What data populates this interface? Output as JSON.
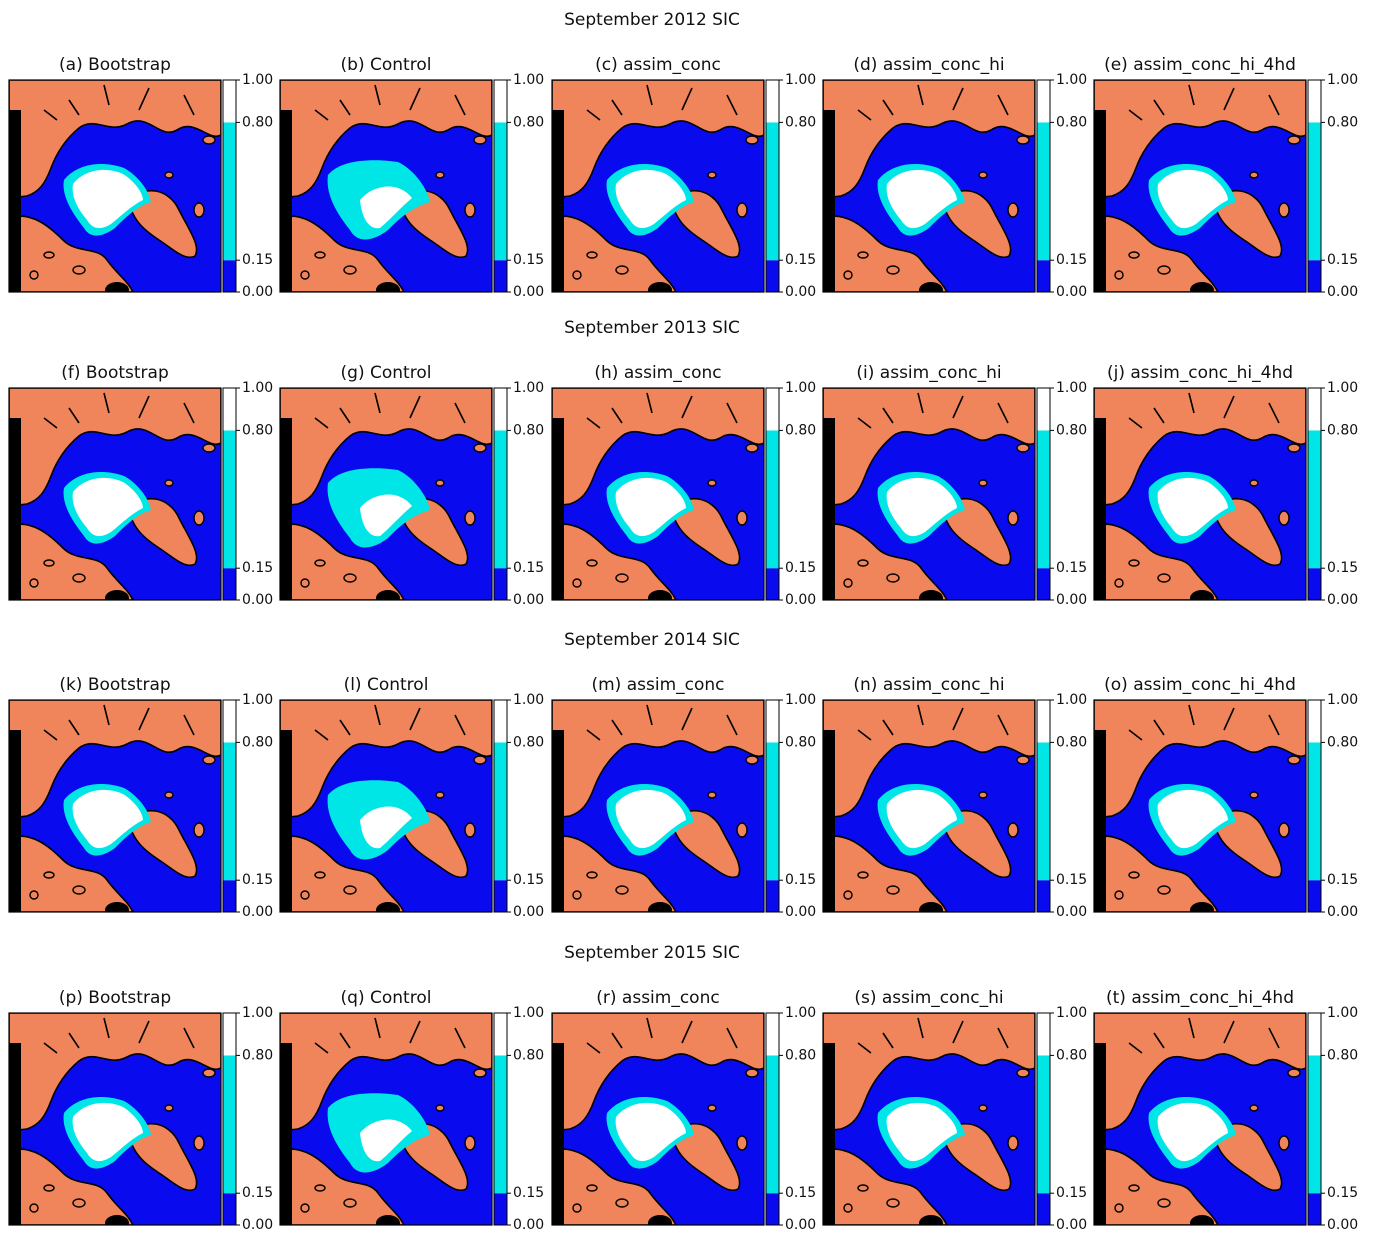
{
  "figure": {
    "rows": [
      {
        "title": "September 2012 SIC",
        "panels": [
          "(a) Bootstrap",
          "(b) Control",
          "(c) assim_conc",
          "(d) assim_conc_hi",
          "(e) assim_conc_hi_4hd"
        ]
      },
      {
        "title": "September 2013 SIC",
        "panels": [
          "(f) Bootstrap",
          "(g) Control",
          "(h) assim_conc",
          "(i) assim_conc_hi",
          "(j) assim_conc_hi_4hd"
        ]
      },
      {
        "title": "September 2014 SIC",
        "panels": [
          "(k) Bootstrap",
          "(l) Control",
          "(m) assim_conc",
          "(n) assim_conc_hi",
          "(o) assim_conc_hi_4hd"
        ]
      },
      {
        "title": "September 2015 SIC",
        "panels": [
          "(p) Bootstrap",
          "(q) Control",
          "(r) assim_conc",
          "(s) assim_conc_hi",
          "(t) assim_conc_hi_4hd"
        ]
      }
    ],
    "colorbar": {
      "ticks": [
        {
          "value": 0,
          "label": "0.00"
        },
        {
          "value": 0.15,
          "label": "0.15"
        },
        {
          "value": 0.8,
          "label": "0.80"
        },
        {
          "value": 1,
          "label": "1.00"
        }
      ],
      "colors": [
        "#0a0aee",
        "#00e6e6",
        "#ffffff"
      ]
    }
  }
}
